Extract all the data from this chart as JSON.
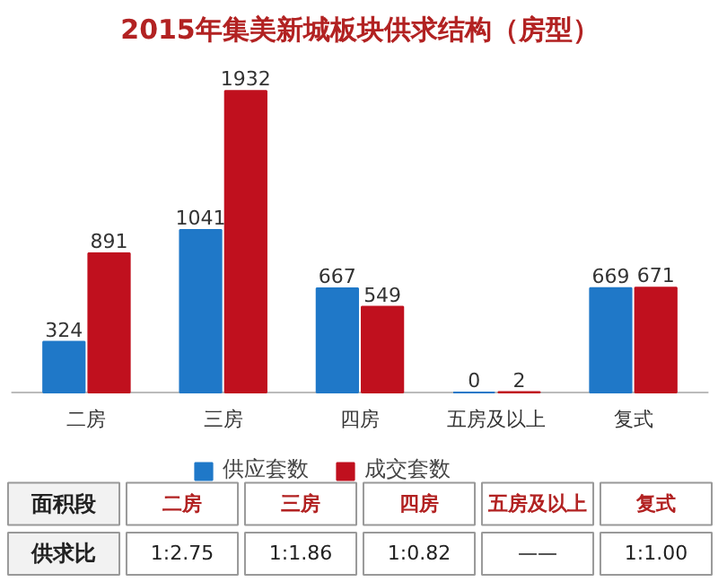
{
  "chart_data": {
    "type": "bar",
    "title": "2015年集美新城板块供求结构（房型）",
    "categories": [
      "二房",
      "三房",
      "四房",
      "五房及以上",
      "复式"
    ],
    "series": [
      {
        "name": "供应套数",
        "color": "#1f78c8",
        "values": [
          324,
          1041,
          667,
          0,
          669
        ]
      },
      {
        "name": "成交套数",
        "color": "#c0101e",
        "values": [
          891,
          1932,
          549,
          2,
          671
        ]
      }
    ],
    "data_labels": true,
    "legend": "bottom",
    "grid": false,
    "annotations": [
      "面积段",
      "供求比",
      "1:2.75",
      "1:1.86",
      "1:0.82",
      "——",
      "1:1.00"
    ]
  }
}
